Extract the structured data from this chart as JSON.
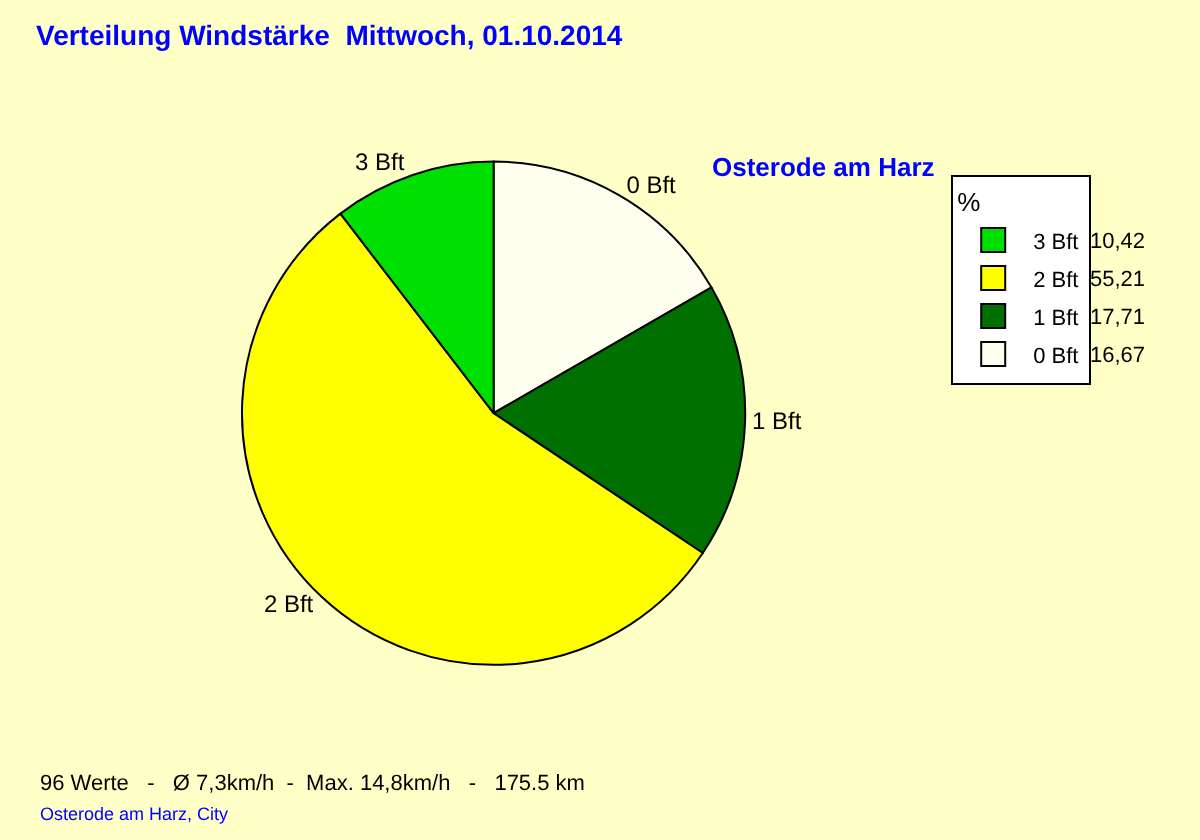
{
  "chart_data": {
    "type": "pie",
    "title": "Verteilung Windstärke  Mittwoch, 01.10.2014",
    "subtitle": "Osterode am Harz",
    "legend_title": "%",
    "legend": "top right",
    "categories": [
      "0 Bft",
      "1 Bft",
      "2 Bft",
      "3 Bft"
    ],
    "values": [
      16.67,
      17.71,
      55.21,
      10.42
    ],
    "value_labels": [
      "16,67",
      "17,71",
      "55,21",
      "10,42"
    ],
    "colors": [
      "#fffff0",
      "#007000",
      "#ffff00",
      "#00e000"
    ],
    "annotations": [
      "96 Werte   -   Ø 7,3km/h  -  Max. 14,8km/h   -   175.5 km",
      "Osterode am Harz, City"
    ]
  }
}
